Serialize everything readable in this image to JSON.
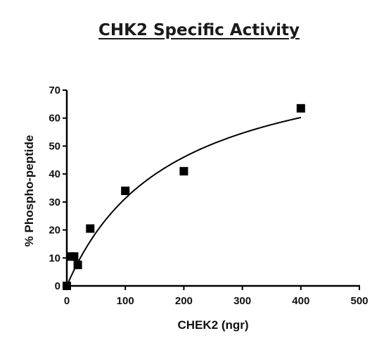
{
  "chart_data": {
    "type": "scatter",
    "title": "CHK2 Specific Activity",
    "xlabel": "CHEK2 (ngr)",
    "ylabel": "% Phospho-peptide",
    "xlim": [
      0,
      500
    ],
    "ylim": [
      0,
      70
    ],
    "xticks": [
      0,
      100,
      200,
      300,
      400,
      500
    ],
    "yticks": [
      0,
      10,
      20,
      30,
      40,
      50,
      60,
      70
    ],
    "grid": false,
    "series": [
      {
        "marker": "square",
        "x": [
          0,
          6.25,
          12.5,
          18.75,
          40,
          100,
          200,
          400
        ],
        "y": [
          0,
          10.5,
          10.5,
          7.5,
          20.5,
          34,
          41,
          63.5
        ]
      }
    ],
    "fit_curve": {
      "model": "hyperbolic",
      "vmax": 87,
      "k": 178,
      "x_range": [
        0,
        400
      ]
    },
    "colors": {
      "marker": "#000000",
      "axis": "#000000",
      "curve": "#000000"
    }
  }
}
